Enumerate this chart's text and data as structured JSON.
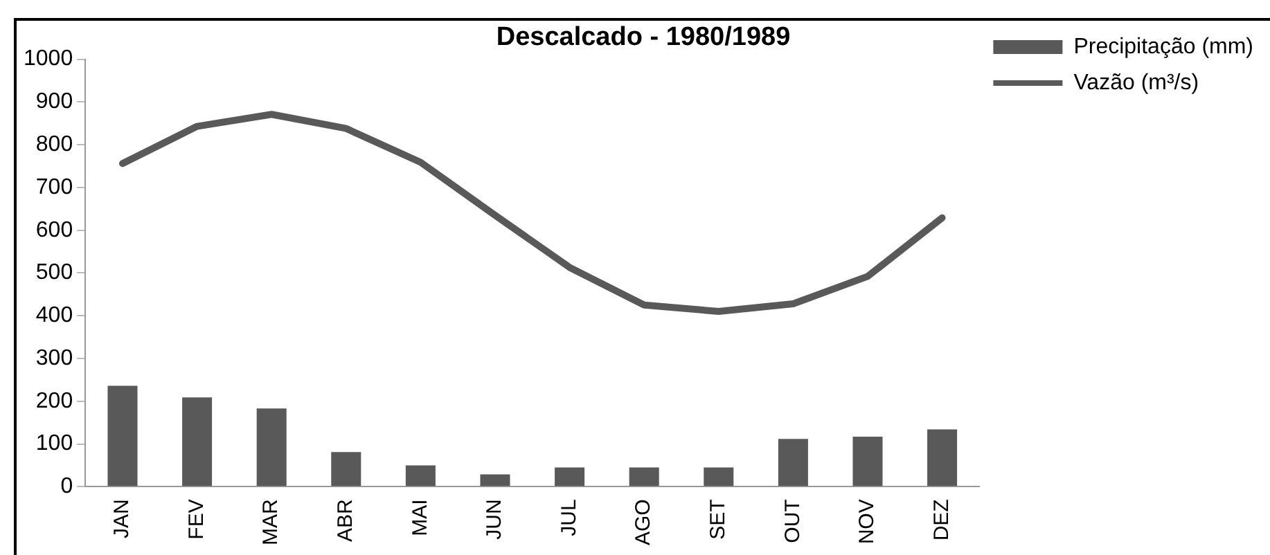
{
  "chart_data": {
    "type": "bar",
    "title": "Descalcado - 1980/1989",
    "categories": [
      "JAN",
      "FEV",
      "MAR",
      "ABR",
      "MAI",
      "JUN",
      "JUL",
      "AGO",
      "SET",
      "OUT",
      "NOV",
      "DEZ"
    ],
    "series": [
      {
        "name": "Precipitação (mm)",
        "color": "#595959",
        "values": [
          236,
          209,
          183,
          81,
          50,
          29,
          45,
          45,
          45,
          112,
          117,
          134
        ]
      },
      {
        "name": "Vazão (m³/s)",
        "type": "line",
        "color": "#595959",
        "values": [
          756,
          843,
          871,
          838,
          759,
          635,
          513,
          425,
          410,
          428,
          492,
          629
        ]
      }
    ],
    "ylim": [
      0,
      1000
    ],
    "yticks": [
      0,
      100,
      200,
      300,
      400,
      500,
      600,
      700,
      800,
      900,
      1000
    ],
    "grid": false,
    "legend": "top right",
    "marker": "none"
  }
}
